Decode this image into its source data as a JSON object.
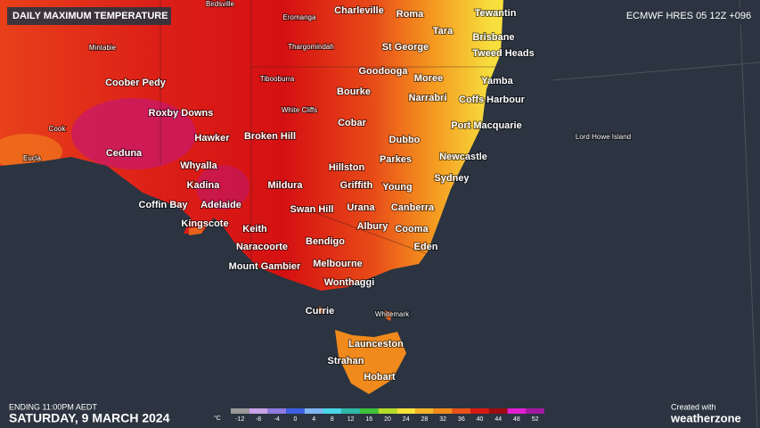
{
  "header": {
    "title": "DAILY MAXIMUM TEMPERATURE",
    "model": "ECMWF HRES 05 12Z +096"
  },
  "map": {
    "places": [
      "Birdsville",
      "Eromanga",
      "Charleville",
      "Roma",
      "Tewantin",
      "Tara",
      "Brisbane",
      "Mintabie",
      "Thargomindah",
      "St George",
      "Tweed Heads",
      "Goodooga",
      "Moree",
      "Yamba",
      "Coober Pedy",
      "Tibooburra",
      "Bourke",
      "Narrabri",
      "Coffs Harbour",
      "Roxby Downs",
      "White Cliffs",
      "Cobar",
      "Port Macquarie",
      "Cook",
      "Hawker",
      "Broken Hill",
      "Dubbo",
      "Lord Howe Island",
      "Ceduna",
      "Newcastle",
      "Eucla",
      "Parkes",
      "Whyalla",
      "Hillston",
      "Sydney",
      "Kadina",
      "Mildura",
      "Griffith",
      "Young",
      "Coffin Bay",
      "Adelaide",
      "Swan Hill",
      "Urana",
      "Canberra",
      "Kingscote",
      "Albury",
      "Cooma",
      "Keith",
      "Bendigo",
      "Naracoorte",
      "Eden",
      "Mount Gambier",
      "Melbourne",
      "Wonthaggi",
      "Currie",
      "Whitemark",
      "Launceston",
      "Strahan",
      "Hobart"
    ]
  },
  "footer": {
    "ending": "ENDING 11:00PM AEDT",
    "date": "SATURDAY, 9 MARCH 2024",
    "credit": "Created with",
    "brand": "weatherzone"
  },
  "legend": {
    "unit": "°C",
    "ticks": [
      -12,
      -8,
      -4,
      0,
      4,
      8,
      12,
      16,
      20,
      24,
      28,
      32,
      36,
      40,
      44,
      48,
      52
    ],
    "colors": [
      "#9a9a9a",
      "#c9a2e8",
      "#8f7ae0",
      "#3d5fe0",
      "#7fb6f2",
      "#49d6e6",
      "#2fb8a8",
      "#3ec23e",
      "#b6dc2a",
      "#f5e33a",
      "#f7b52a",
      "#f08a1c",
      "#e8521a",
      "#d81a14",
      "#9c0d10",
      "#e020d0",
      "#a01aa0"
    ]
  }
}
